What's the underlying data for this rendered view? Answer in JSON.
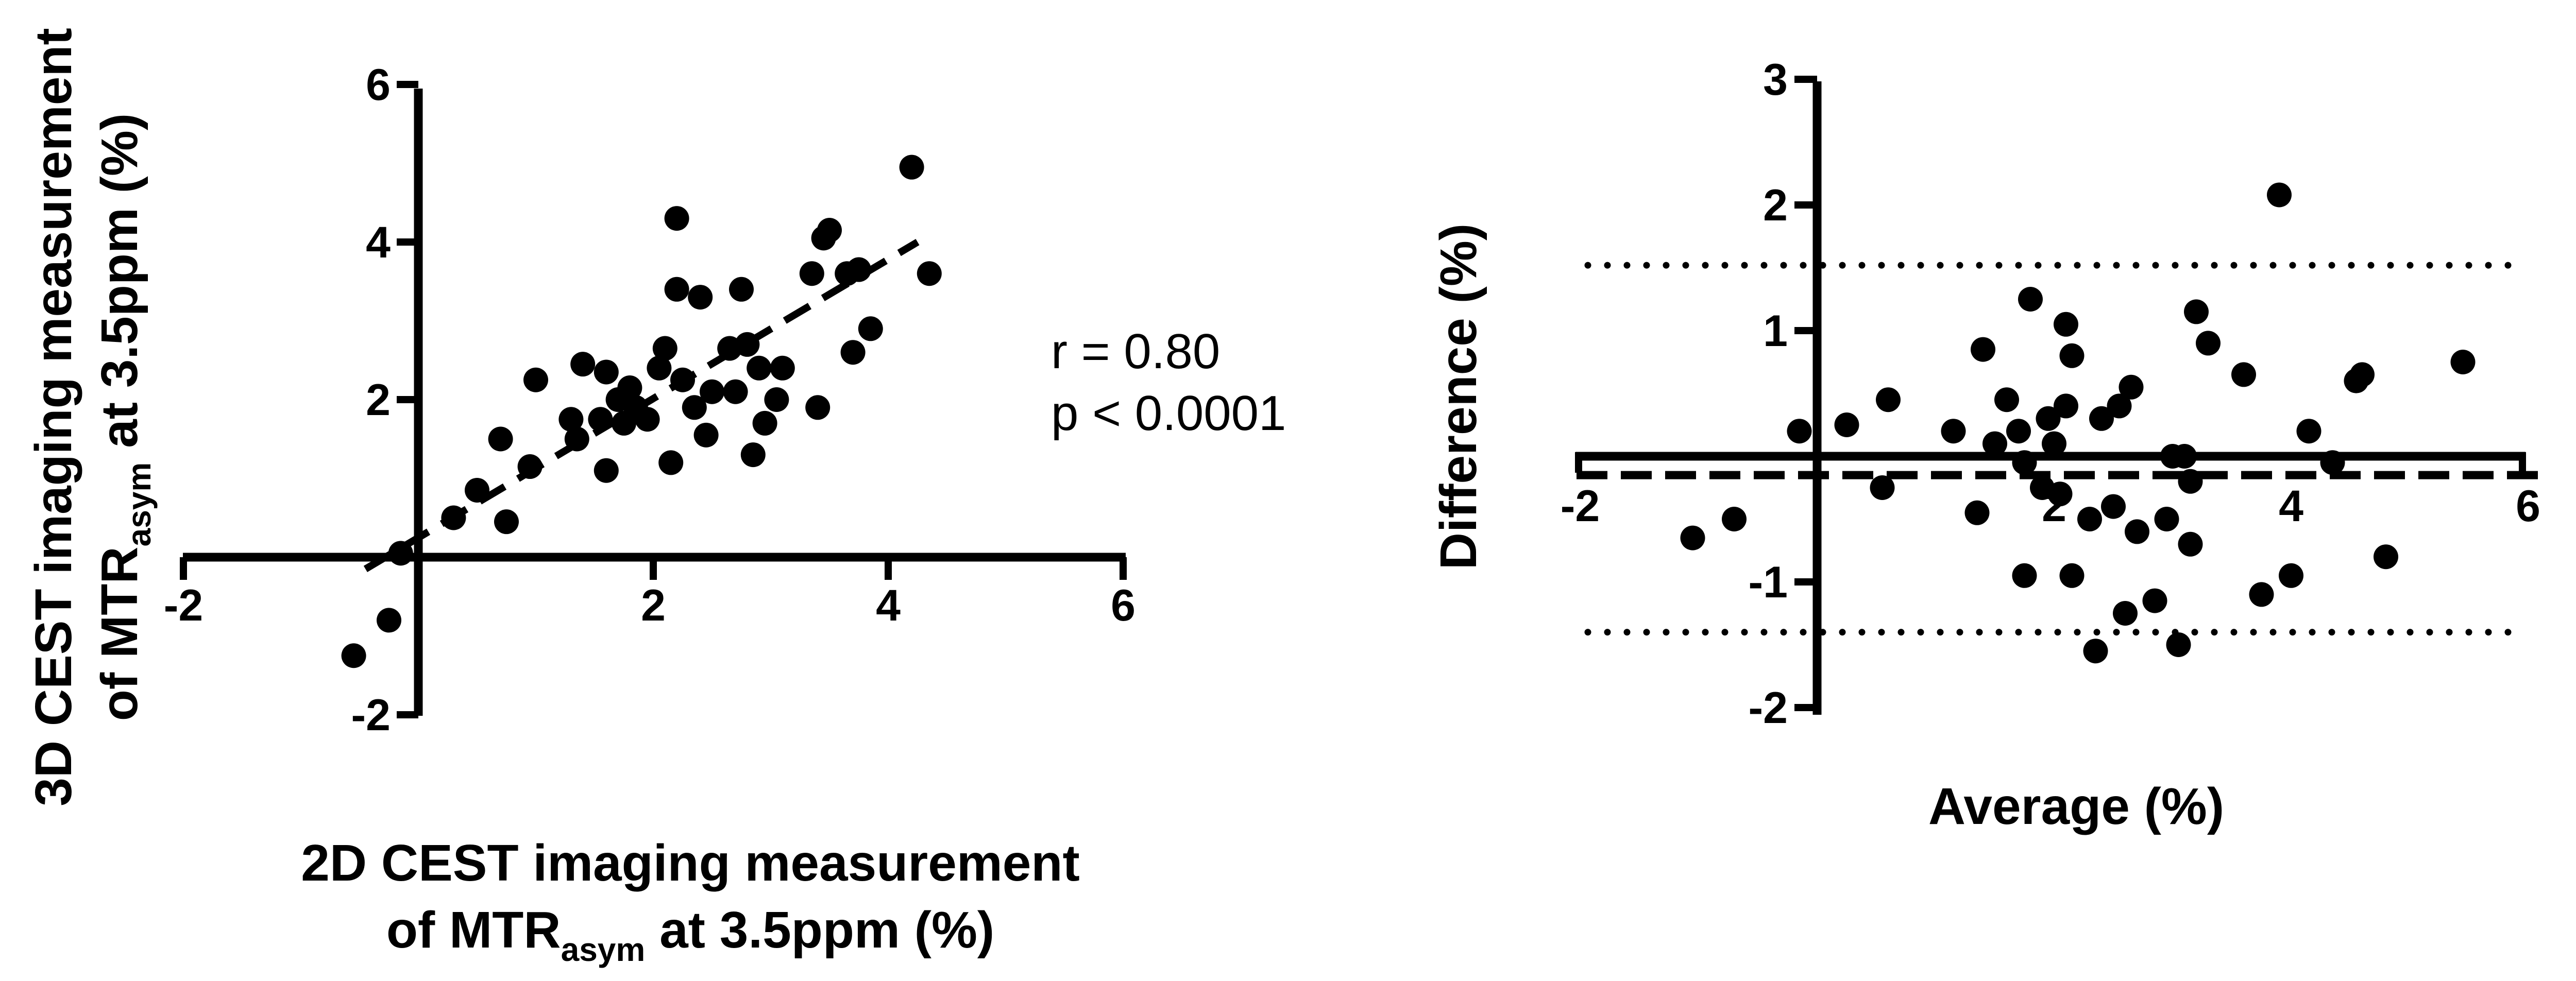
{
  "chart_data": [
    {
      "type": "scatter",
      "xlabel": {
        "pre": "2D CEST imaging measurement",
        "line2_pre": "of MTR",
        "line2_sub": "asym",
        "line2_post": " at 3.5ppm (%)"
      },
      "ylabel": {
        "pre": "3D CEST imaging measurement",
        "line2_pre": "of MTR",
        "line2_sub": "asym",
        "line2_post": " at 3.5ppm (%)"
      },
      "xlim": [
        -2,
        6
      ],
      "ylim": [
        -2,
        6
      ],
      "xticks": [
        -2,
        2,
        4,
        6
      ],
      "yticks": [
        -2,
        2,
        4,
        6
      ],
      "annotations": [
        "r = 0.80",
        "p < 0.0001"
      ],
      "regression_line": {
        "x": [
          -0.45,
          4.25
        ],
        "y": [
          -0.15,
          4.0
        ]
      },
      "points": [
        {
          "x": -0.55,
          "y": -1.25
        },
        {
          "x": -0.25,
          "y": -0.8
        },
        {
          "x": -0.15,
          "y": 0.05
        },
        {
          "x": 0.3,
          "y": 0.5
        },
        {
          "x": 0.5,
          "y": 0.85
        },
        {
          "x": 0.7,
          "y": 1.5
        },
        {
          "x": 0.75,
          "y": 0.45
        },
        {
          "x": 0.95,
          "y": 1.15
        },
        {
          "x": 1.0,
          "y": 2.25
        },
        {
          "x": 1.3,
          "y": 1.75
        },
        {
          "x": 1.35,
          "y": 1.5
        },
        {
          "x": 1.4,
          "y": 2.45
        },
        {
          "x": 1.55,
          "y": 1.75
        },
        {
          "x": 1.6,
          "y": 1.1
        },
        {
          "x": 1.6,
          "y": 2.35
        },
        {
          "x": 1.7,
          "y": 2.0
        },
        {
          "x": 1.75,
          "y": 1.7
        },
        {
          "x": 1.8,
          "y": 2.15
        },
        {
          "x": 1.85,
          "y": 1.9
        },
        {
          "x": 1.95,
          "y": 1.75
        },
        {
          "x": 2.05,
          "y": 2.4
        },
        {
          "x": 2.1,
          "y": 2.65
        },
        {
          "x": 2.15,
          "y": 1.2
        },
        {
          "x": 2.2,
          "y": 3.4
        },
        {
          "x": 2.2,
          "y": 4.3
        },
        {
          "x": 2.25,
          "y": 2.25
        },
        {
          "x": 2.35,
          "y": 1.9
        },
        {
          "x": 2.4,
          "y": 3.3
        },
        {
          "x": 2.45,
          "y": 1.55
        },
        {
          "x": 2.5,
          "y": 2.1
        },
        {
          "x": 2.65,
          "y": 2.65
        },
        {
          "x": 2.7,
          "y": 2.1
        },
        {
          "x": 2.75,
          "y": 3.4
        },
        {
          "x": 2.8,
          "y": 2.7
        },
        {
          "x": 2.85,
          "y": 1.3
        },
        {
          "x": 2.9,
          "y": 2.4
        },
        {
          "x": 2.95,
          "y": 1.7
        },
        {
          "x": 3.05,
          "y": 2.0
        },
        {
          "x": 3.1,
          "y": 2.4
        },
        {
          "x": 3.35,
          "y": 3.6
        },
        {
          "x": 3.4,
          "y": 1.9
        },
        {
          "x": 3.45,
          "y": 4.05
        },
        {
          "x": 3.5,
          "y": 4.15
        },
        {
          "x": 3.65,
          "y": 3.6
        },
        {
          "x": 3.7,
          "y": 2.6
        },
        {
          "x": 3.75,
          "y": 3.65
        },
        {
          "x": 3.85,
          "y": 2.9
        },
        {
          "x": 4.2,
          "y": 4.95
        },
        {
          "x": 4.35,
          "y": 3.6
        }
      ]
    },
    {
      "type": "scatter",
      "xlabel": "Average (%)",
      "ylabel": "Difference (%)",
      "xlim": [
        -2,
        6
      ],
      "ylim": [
        -2,
        3
      ],
      "xticks": [
        -2,
        2,
        4,
        6
      ],
      "yticks": [
        -2,
        -1,
        1,
        2,
        3
      ],
      "mean_difference": -0.15,
      "limits_of_agreement": [
        1.52,
        -1.4
      ],
      "points": [
        {
          "x": -0.15,
          "y": 0.2
        },
        {
          "x": 0.25,
          "y": 0.25
        },
        {
          "x": 0.55,
          "y": -0.25
        },
        {
          "x": 0.6,
          "y": 0.45
        },
        {
          "x": 1.15,
          "y": 0.2
        },
        {
          "x": 1.35,
          "y": -0.45
        },
        {
          "x": 1.4,
          "y": 0.85
        },
        {
          "x": 1.5,
          "y": 0.1
        },
        {
          "x": 1.6,
          "y": 0.45
        },
        {
          "x": 1.7,
          "y": 0.2
        },
        {
          "x": 1.75,
          "y": -0.05
        },
        {
          "x": 1.75,
          "y": -0.95
        },
        {
          "x": 1.8,
          "y": 1.25
        },
        {
          "x": 1.9,
          "y": -0.25
        },
        {
          "x": 1.95,
          "y": 0.3
        },
        {
          "x": 2.0,
          "y": 0.1
        },
        {
          "x": 2.05,
          "y": -0.3
        },
        {
          "x": 2.1,
          "y": 1.05
        },
        {
          "x": 2.1,
          "y": 0.4
        },
        {
          "x": 2.15,
          "y": 0.8
        },
        {
          "x": 2.15,
          "y": -0.95
        },
        {
          "x": 2.3,
          "y": -0.5
        },
        {
          "x": 2.35,
          "y": -1.55
        },
        {
          "x": 2.4,
          "y": 0.3
        },
        {
          "x": 2.5,
          "y": -0.4
        },
        {
          "x": 2.55,
          "y": 0.4
        },
        {
          "x": 2.6,
          "y": -1.25
        },
        {
          "x": 2.65,
          "y": 0.55
        },
        {
          "x": 2.7,
          "y": -0.6
        },
        {
          "x": 2.85,
          "y": -1.15
        },
        {
          "x": 2.95,
          "y": -0.5
        },
        {
          "x": 3.0,
          "y": 0.0
        },
        {
          "x": 3.05,
          "y": -1.5
        },
        {
          "x": 3.1,
          "y": 0.0
        },
        {
          "x": 3.15,
          "y": -0.7
        },
        {
          "x": 3.15,
          "y": -0.2
        },
        {
          "x": 3.2,
          "y": 1.15
        },
        {
          "x": 3.3,
          "y": 0.9
        },
        {
          "x": 3.6,
          "y": 0.65
        },
        {
          "x": 3.75,
          "y": -1.1
        },
        {
          "x": 3.9,
          "y": 2.08
        },
        {
          "x": 4.0,
          "y": -0.95
        },
        {
          "x": 4.15,
          "y": 0.2
        },
        {
          "x": 4.35,
          "y": -0.05
        },
        {
          "x": 4.55,
          "y": 0.6
        },
        {
          "x": 4.6,
          "y": 0.65
        },
        {
          "x": 4.8,
          "y": -0.8
        },
        {
          "x": 5.45,
          "y": 0.75
        },
        {
          "x": -1.05,
          "y": -0.65
        },
        {
          "x": -0.7,
          "y": -0.5
        }
      ]
    }
  ]
}
